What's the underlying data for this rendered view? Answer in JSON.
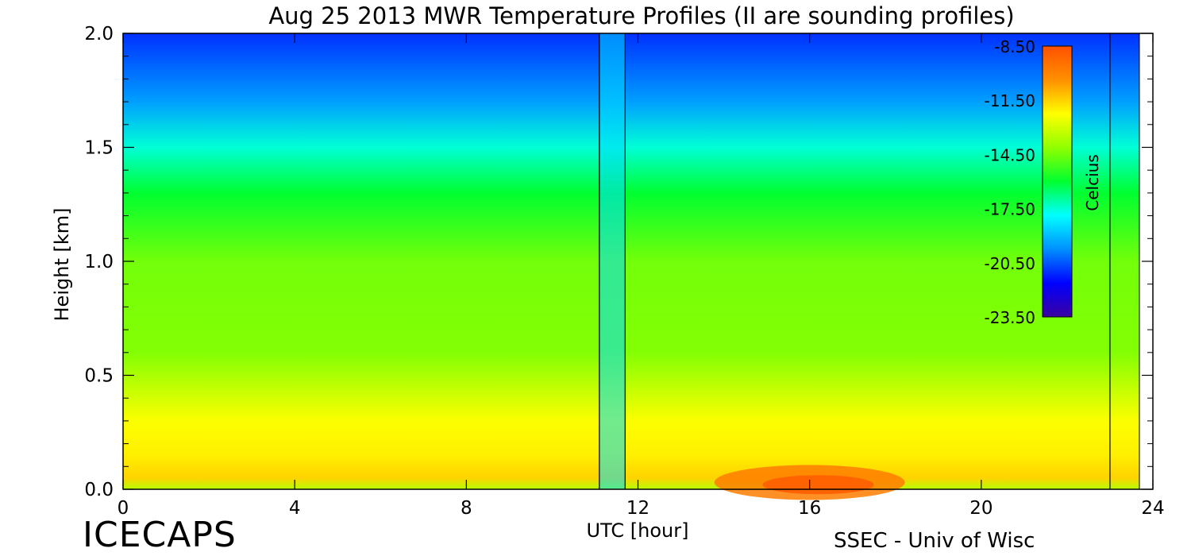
{
  "chart_data": {
    "type": "heatmap",
    "title": "Aug 25 2013 MWR Temperature Profiles (II are sounding profiles)",
    "xlabel": "UTC [hour]",
    "ylabel": "Height [km]",
    "xlim": [
      0,
      24
    ],
    "ylim": [
      0,
      2.0
    ],
    "x_ticks": [
      "0",
      "4",
      "8",
      "12",
      "16",
      "20",
      "24"
    ],
    "y_ticks": [
      "0.0",
      "0.5",
      "1.0",
      "1.5",
      "2.0"
    ],
    "sounding_times": [
      11.1,
      11.7,
      23.0
    ],
    "colorbar": {
      "label": "Celcius",
      "range": [
        -23.5,
        -8.5
      ],
      "tick_labels": [
        "-8.50",
        "-11.50",
        "-14.50",
        "-17.50",
        "-20.50",
        "-23.50"
      ],
      "colors": [
        "#3a00a0",
        "#0000ff",
        "#0090ff",
        "#00ffff",
        "#00ff30",
        "#90ff00",
        "#ffff00",
        "#ff9000",
        "#ff5000"
      ]
    },
    "profile_heights_km": [
      0.0,
      0.05,
      0.15,
      0.3,
      0.6,
      1.0,
      1.3,
      1.5,
      1.7,
      2.0
    ],
    "profile_temps_c": [
      -13.5,
      -11.5,
      -12.0,
      -12.3,
      -14.3,
      -14.5,
      -16.0,
      -17.5,
      -19.5,
      -21.0
    ]
  },
  "footer": {
    "brand": "ICECAPS",
    "credit": "SSEC - Univ of Wisc"
  }
}
